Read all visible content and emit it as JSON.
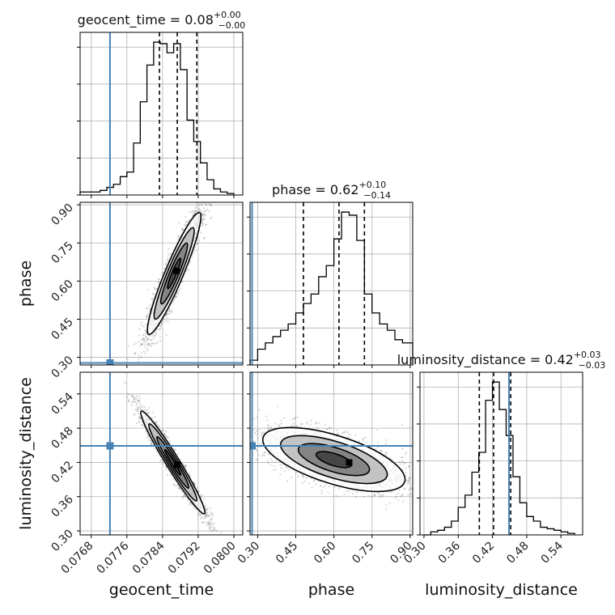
{
  "chart_data": {
    "type": "corner",
    "parameters": [
      "geocent_time",
      "phase",
      "luminosity_distance"
    ],
    "injection_color": "#4682b4",
    "grid": true,
    "axes": {
      "geocent_time": {
        "range": [
          0.07655,
          0.0802
        ],
        "ticks": [
          0.0768,
          0.0776,
          0.0784,
          0.0792,
          0.08
        ],
        "tick_labels": [
          "0.0768",
          "0.0776",
          "0.0784",
          "0.0792",
          "0.0800"
        ],
        "axis_label": "geocent_time"
      },
      "phase": {
        "range": [
          0.27,
          0.91
        ],
        "ticks": [
          0.3,
          0.45,
          0.6,
          0.75,
          0.9
        ],
        "tick_labels": [
          "0.30",
          "0.45",
          "0.60",
          "0.75",
          "0.90"
        ],
        "axis_label": "phase"
      },
      "luminosity_distance": {
        "range": [
          0.293,
          0.578
        ],
        "ticks": [
          0.3,
          0.36,
          0.42,
          0.48,
          0.54
        ],
        "tick_labels": [
          "0.30",
          "0.36",
          "0.42",
          "0.48",
          "0.54"
        ],
        "axis_label": "luminosity_distance"
      }
    },
    "injection": {
      "geocent_time": 0.07722,
      "phase": 0.278,
      "luminosity_distance": 0.449
    },
    "titles": {
      "geocent_time": {
        "prefix": "geocent_time = 0.08",
        "plus": "+0.00",
        "minus": "−0.00"
      },
      "phase": {
        "prefix": "phase = 0.62",
        "plus": "+0.10",
        "minus": "−0.14"
      },
      "luminosity_distance": {
        "prefix": "luminosity_distance = 0.42",
        "plus": "+0.03",
        "minus": "−0.03"
      }
    },
    "marginals": {
      "geocent_time": {
        "bin_edges": [
          0.07655,
          0.077,
          0.07715,
          0.0773,
          0.07745,
          0.0776,
          0.07775,
          0.0779,
          0.07805,
          0.0782,
          0.07835,
          0.0785,
          0.07865,
          0.0788,
          0.07895,
          0.0791,
          0.07925,
          0.0794,
          0.07955,
          0.0797,
          0.07985,
          0.08
        ],
        "counts": [
          0.02,
          0.03,
          0.05,
          0.07,
          0.12,
          0.15,
          0.34,
          0.61,
          0.85,
          1.0,
          0.99,
          0.93,
          0.99,
          0.82,
          0.49,
          0.35,
          0.21,
          0.1,
          0.04,
          0.02,
          0.01
        ],
        "quantiles": [
          0.07833,
          0.07873,
          0.07917
        ]
      },
      "phase": {
        "bin_edges": [
          0.27,
          0.3,
          0.33,
          0.36,
          0.39,
          0.42,
          0.45,
          0.48,
          0.51,
          0.54,
          0.57,
          0.6,
          0.63,
          0.66,
          0.69,
          0.72,
          0.75,
          0.78,
          0.81,
          0.84,
          0.87,
          0.91
        ],
        "counts": [
          0.03,
          0.1,
          0.14,
          0.18,
          0.22,
          0.26,
          0.33,
          0.39,
          0.45,
          0.56,
          0.63,
          0.8,
          0.97,
          0.95,
          0.79,
          0.45,
          0.33,
          0.26,
          0.22,
          0.16,
          0.14
        ],
        "quantiles": [
          0.48,
          0.62,
          0.72
        ]
      },
      "luminosity_distance": {
        "bin_edges": [
          0.3,
          0.312,
          0.324,
          0.336,
          0.348,
          0.36,
          0.372,
          0.384,
          0.396,
          0.408,
          0.42,
          0.432,
          0.444,
          0.456,
          0.468,
          0.48,
          0.492,
          0.504,
          0.516,
          0.528,
          0.54,
          0.552,
          0.564
        ],
        "counts": [
          0.0,
          0.02,
          0.03,
          0.05,
          0.09,
          0.18,
          0.26,
          0.41,
          0.54,
          0.88,
          1.0,
          0.82,
          0.65,
          0.38,
          0.21,
          0.12,
          0.09,
          0.05,
          0.04,
          0.03,
          0.02,
          0.01
        ],
        "quantiles": [
          0.397,
          0.422,
          0.452
        ]
      }
    },
    "pairs": [
      {
        "x": "geocent_time",
        "y": "phase",
        "center": [
          0.07866,
          0.63
        ],
        "std": [
          0.0003,
          0.12
        ],
        "corr": 0.93,
        "contour_levels": [
          0.5,
          1.0,
          1.5,
          2.0
        ],
        "max_point": [
          0.07871,
          0.64
        ],
        "point_count": 2400
      },
      {
        "x": "geocent_time",
        "y": "luminosity_distance",
        "center": [
          0.07863,
          0.42
        ],
        "std": [
          0.00036,
          0.045
        ],
        "corr": -0.97,
        "contour_levels": [
          0.5,
          1.0,
          1.5,
          2.0
        ],
        "max_point": [
          0.07873,
          0.416
        ],
        "point_count": 2400
      },
      {
        "x": "phase",
        "y": "luminosity_distance",
        "center": [
          0.6,
          0.425
        ],
        "std": [
          0.14,
          0.028
        ],
        "corr": -0.62,
        "contour_levels": [
          0.5,
          1.0,
          1.5,
          2.0
        ],
        "max_point": [
          0.66,
          0.42
        ],
        "point_count": 2400
      }
    ]
  }
}
